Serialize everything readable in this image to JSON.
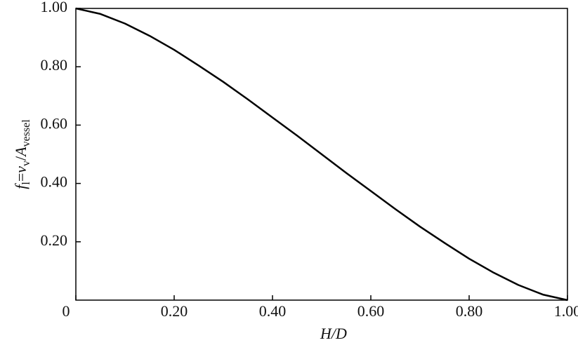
{
  "chart_data": {
    "type": "line",
    "xlabel": "H/D",
    "ylabel": [
      {
        "text": "f",
        "italic": true,
        "sub": false
      },
      {
        "text": "l",
        "italic": false,
        "sub": true
      },
      {
        "text": "=",
        "italic": false,
        "sub": false
      },
      {
        "text": "v",
        "italic": true,
        "sub": false
      },
      {
        "text": "v",
        "italic": false,
        "sub": true
      },
      {
        "text": "/",
        "italic": false,
        "sub": false
      },
      {
        "text": "A",
        "italic": true,
        "sub": false
      },
      {
        "text": "vessel",
        "italic": false,
        "sub": true
      }
    ],
    "x": [
      0,
      0.05,
      0.1,
      0.15,
      0.2,
      0.25,
      0.3,
      0.35,
      0.4,
      0.45,
      0.5,
      0.55,
      0.6,
      0.65,
      0.7,
      0.75,
      0.8,
      0.85,
      0.9,
      0.95,
      1.0
    ],
    "values": [
      1.0,
      0.981,
      0.948,
      0.906,
      0.858,
      0.804,
      0.748,
      0.688,
      0.626,
      0.564,
      0.5,
      0.436,
      0.374,
      0.312,
      0.252,
      0.196,
      0.142,
      0.094,
      0.052,
      0.019,
      0.0
    ],
    "color": "#000000",
    "xlim": [
      0,
      1.0
    ],
    "ylim": [
      0,
      1.0
    ],
    "xticks": [
      0,
      {
        "value": 0.2,
        "label": "0.20"
      },
      {
        "value": 0.4,
        "label": "0.40"
      },
      {
        "value": 0.6,
        "label": "0.60"
      },
      {
        "value": 0.8,
        "label": "0.80"
      },
      {
        "value": 1.0,
        "label": "1.00"
      }
    ],
    "yticks": [
      {
        "value": 0.2,
        "label": "0.20"
      },
      {
        "value": 0.4,
        "label": "0.40"
      },
      {
        "value": 0.6,
        "label": "0.60"
      },
      {
        "value": 0.8,
        "label": "0.80"
      },
      {
        "value": 1.0,
        "label": "1.00"
      }
    ],
    "grid": false
  }
}
